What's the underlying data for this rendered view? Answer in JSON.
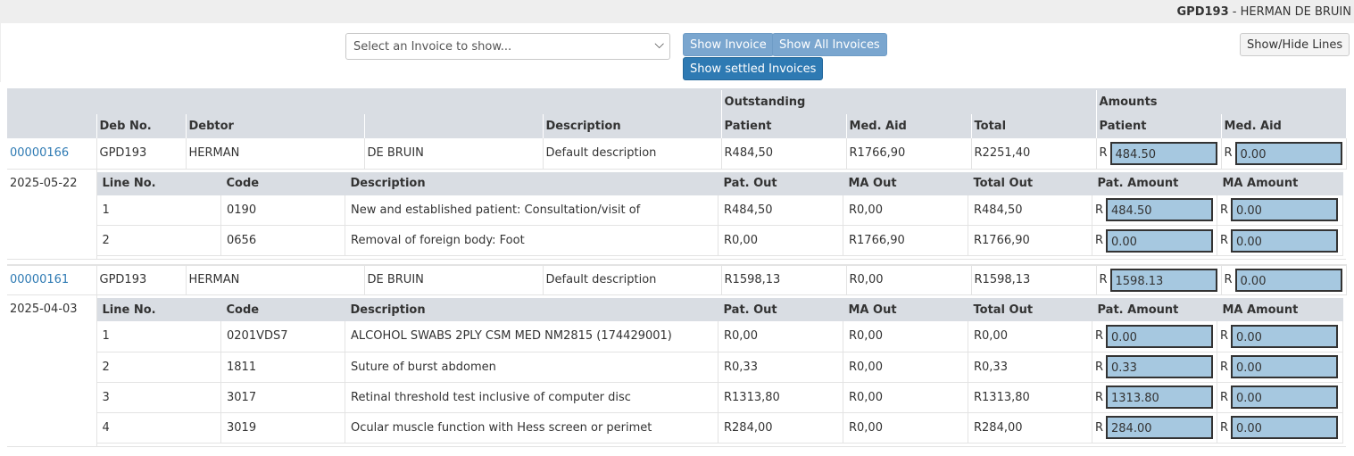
{
  "header": {
    "code": "GPD193",
    "separator": " - ",
    "name": "HERMAN DE BRUIN"
  },
  "controls": {
    "select_placeholder": "Select an Invoice to show...",
    "show_invoice": "Show Invoice",
    "show_all": "Show All Invoices",
    "show_settled": "Show settled Invoices",
    "show_hide_lines": "Show/Hide Lines"
  },
  "table": {
    "group_outstanding": "Outstanding",
    "group_amounts": "Amounts",
    "col_deb_no": "Deb No.",
    "col_debtor": "Debtor",
    "col_description": "Description",
    "col_patient": "Patient",
    "col_med_aid": "Med. Aid",
    "col_total": "Total",
    "col_amt_patient": "Patient",
    "col_amt_med_aid": "Med. Aid",
    "currency": "R"
  },
  "lines_header": {
    "line_no": "Line No.",
    "code": "Code",
    "description": "Description",
    "pat_out": "Pat. Out",
    "ma_out": "MA Out",
    "total_out": "Total Out",
    "pat_amount": "Pat. Amount",
    "ma_amount": "MA Amount"
  },
  "invoices": [
    {
      "invoice_no": "00000166",
      "deb_no": "GPD193",
      "first_name": "HERMAN",
      "last_name": "DE BRUIN",
      "description": "Default description",
      "out_patient": "R484,50",
      "out_med_aid": "R1766,90",
      "out_total": "R2251,40",
      "amt_patient": "484.50",
      "amt_med_aid": "0.00",
      "date": "2025-05-22",
      "lines": [
        {
          "line_no": "1",
          "code": "0190",
          "description": "New and established patient: Consultation/visit of",
          "pat_out": "R484,50",
          "ma_out": "R0,00",
          "total_out": "R484,50",
          "pat_amount": "484.50",
          "ma_amount": "0.00"
        },
        {
          "line_no": "2",
          "code": "0656",
          "description": "Removal of foreign body: Foot",
          "pat_out": "R0,00",
          "ma_out": "R1766,90",
          "total_out": "R1766,90",
          "pat_amount": "0.00",
          "ma_amount": "0.00"
        }
      ]
    },
    {
      "invoice_no": "00000161",
      "deb_no": "GPD193",
      "first_name": "HERMAN",
      "last_name": "DE BRUIN",
      "description": "Default description",
      "out_patient": "R1598,13",
      "out_med_aid": "R0,00",
      "out_total": "R1598,13",
      "amt_patient": "1598.13",
      "amt_med_aid": "0.00",
      "date": "2025-04-03",
      "lines": [
        {
          "line_no": "1",
          "code": "0201VDS7",
          "description": "ALCOHOL SWABS 2PLY CSM MED NM2815 (174429001)",
          "pat_out": "R0,00",
          "ma_out": "R0,00",
          "total_out": "R0,00",
          "pat_amount": "0.00",
          "ma_amount": "0.00"
        },
        {
          "line_no": "2",
          "code": "1811",
          "description": "Suture of burst abdomen",
          "pat_out": "R0,33",
          "ma_out": "R0,00",
          "total_out": "R0,33",
          "pat_amount": "0.33",
          "ma_amount": "0.00"
        },
        {
          "line_no": "3",
          "code": "3017",
          "description": "Retinal threshold test inclusive of computer disc",
          "pat_out": "R1313,80",
          "ma_out": "R0,00",
          "total_out": "R1313,80",
          "pat_amount": "1313.80",
          "ma_amount": "0.00"
        },
        {
          "line_no": "4",
          "code": "3019",
          "description": "Ocular muscle function with Hess screen or perimet",
          "pat_out": "R284,00",
          "ma_out": "R0,00",
          "total_out": "R284,00",
          "pat_amount": "284.00",
          "ma_amount": "0.00"
        }
      ]
    }
  ]
}
